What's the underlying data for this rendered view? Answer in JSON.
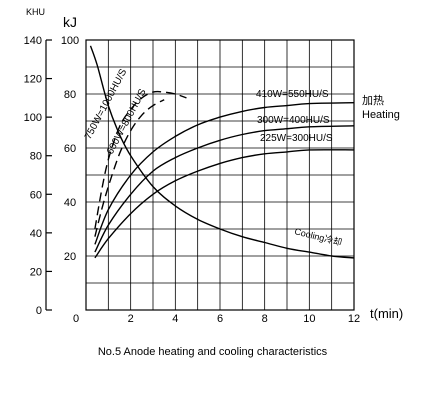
{
  "chart_data": {
    "type": "line",
    "caption": "No.5 Anode heating and cooling characteristics",
    "y_left_unit": "KHU",
    "y_right_unit": "kJ",
    "x_unit_label": "t(min)",
    "xlim": [
      0,
      12
    ],
    "ylim_khu": [
      0,
      140
    ],
    "ylim_kj": [
      0,
      100
    ],
    "x_ticks": [
      "0",
      "2",
      "4",
      "6",
      "8",
      "10",
      "12"
    ],
    "y_ticks_khu": [
      "0",
      "20",
      "40",
      "60",
      "80",
      "100",
      "120",
      "140"
    ],
    "y_ticks_kj": [
      "20",
      "40",
      "60",
      "80",
      "100"
    ],
    "heating_label_cn": "加热",
    "heating_label_en": "Heating",
    "grid": true,
    "series": [
      {
        "name": "410W=550HU/S",
        "style": "solid",
        "x": [
          0.4,
          1,
          2,
          3,
          4,
          5,
          6,
          7,
          8,
          9,
          10,
          12
        ],
        "y_khu": [
          34,
          52,
          70,
          82,
          90,
          96,
          100,
          103,
          105,
          106,
          107,
          107.5
        ]
      },
      {
        "name": "300W=400HU/S",
        "style": "solid",
        "x": [
          0.4,
          1,
          2,
          3,
          4,
          5,
          6,
          7,
          8,
          9,
          10,
          12
        ],
        "y_khu": [
          30,
          44,
          60,
          72,
          79,
          84,
          88,
          91,
          93,
          94,
          95,
          95.5
        ]
      },
      {
        "name": "225W=300HU/S",
        "style": "solid",
        "x": [
          0.4,
          1,
          2,
          3,
          4,
          5,
          6,
          7,
          8,
          9,
          10,
          12
        ],
        "y_khu": [
          27,
          37,
          50,
          60,
          67,
          72,
          76,
          79,
          81,
          82,
          83,
          83
        ]
      },
      {
        "name": "750W=1000HU/S",
        "style": "dashed",
        "x": [
          0.4,
          0.7,
          1,
          1.5,
          2,
          2.5,
          3,
          3.5,
          4,
          4.5
        ],
        "y_khu": [
          42,
          62,
          78,
          95,
          104,
          110,
          113,
          113,
          112,
          110
        ]
      },
      {
        "name": "600W=800HU/S",
        "style": "dashed",
        "x": [
          0.4,
          0.7,
          1,
          1.5,
          2,
          2.5,
          3,
          3.5
        ],
        "y_khu": [
          38,
          52,
          64,
          81,
          93,
          101,
          106,
          109
        ]
      },
      {
        "name": "Cooling冷却",
        "style": "solid",
        "x": [
          0.2,
          0.5,
          1,
          1.5,
          2,
          3,
          4,
          5,
          6,
          7,
          8,
          9,
          10,
          11,
          12
        ],
        "y_khu": [
          137,
          127,
          106,
          91,
          80,
          64,
          54,
          47,
          42,
          38,
          35,
          32,
          30,
          28,
          27
        ]
      }
    ]
  }
}
